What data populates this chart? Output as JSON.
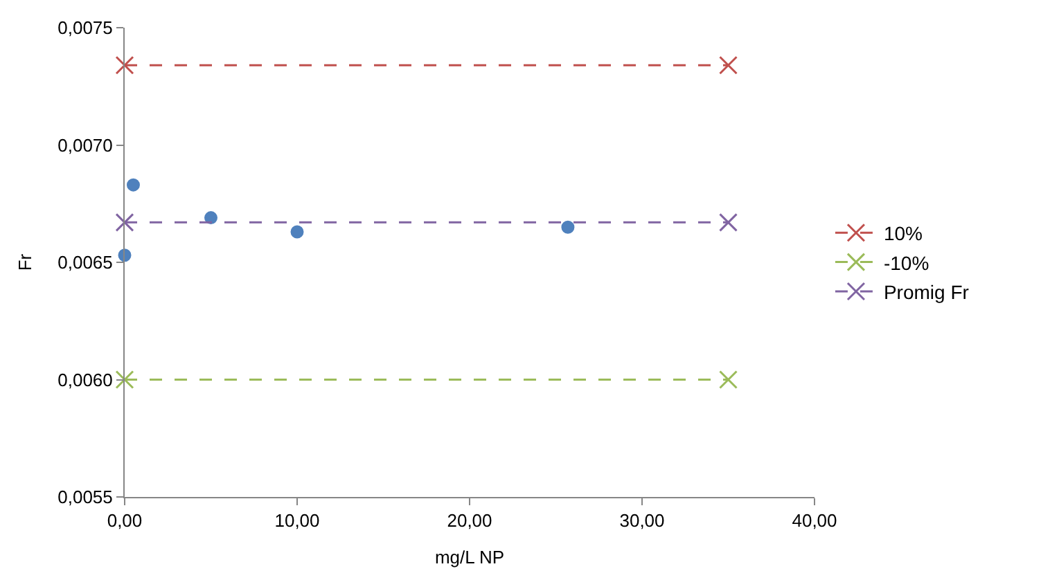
{
  "chart_data": {
    "type": "scatter",
    "xlabel": "mg/L NP",
    "ylabel": "Fr",
    "xlim": [
      0,
      40
    ],
    "ylim": [
      0.0055,
      0.0075
    ],
    "xticks": [
      {
        "value": 0,
        "label": "0,00"
      },
      {
        "value": 10,
        "label": "10,00"
      },
      {
        "value": 20,
        "label": "20,00"
      },
      {
        "value": 30,
        "label": "30,00"
      },
      {
        "value": 40,
        "label": "40,00"
      }
    ],
    "yticks": [
      {
        "value": 0.0055,
        "label": "0,0055"
      },
      {
        "value": 0.006,
        "label": "0,0060"
      },
      {
        "value": 0.0065,
        "label": "0,0065"
      },
      {
        "value": 0.007,
        "label": "0,0070"
      },
      {
        "value": 0.0075,
        "label": "0,0075"
      }
    ],
    "grid": false,
    "legend": "right",
    "series": [
      {
        "marker": "circle",
        "color": "#4f81bd",
        "x": [
          0,
          0.5,
          5,
          10,
          25.7
        ],
        "values": [
          0.00653,
          0.00683,
          0.00669,
          0.00663,
          0.00665
        ]
      },
      {
        "name": "10%",
        "type": "line",
        "marker": "cross",
        "line_style": "dashed",
        "color": "#c0504d",
        "x": [
          0,
          35
        ],
        "values": [
          0.00734,
          0.00734
        ]
      },
      {
        "name": "-10%",
        "type": "line",
        "marker": "cross",
        "line_style": "dashed",
        "color": "#9bbb59",
        "x": [
          0,
          35
        ],
        "values": [
          0.006,
          0.006
        ]
      },
      {
        "name": "Promig Fr",
        "type": "line",
        "marker": "cross",
        "line_style": "dashed",
        "color": "#8064a2",
        "x": [
          0,
          35
        ],
        "values": [
          0.00667,
          0.00667
        ]
      }
    ]
  }
}
